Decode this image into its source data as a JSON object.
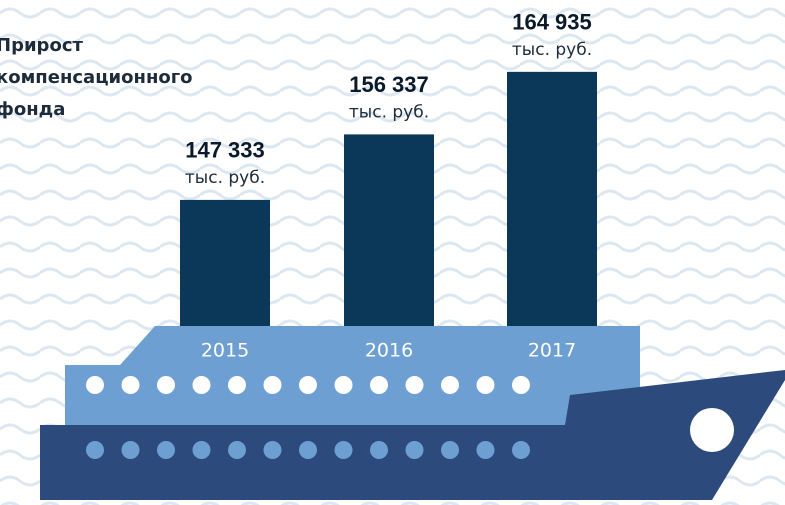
{
  "chart_data": {
    "type": "bar",
    "title": "Прирост компенсационного фонда",
    "categories": [
      "2015",
      "2016",
      "2017"
    ],
    "values": [
      147333,
      156337,
      164935
    ],
    "value_labels": [
      "147 333",
      "156 337",
      "164 935"
    ],
    "unit": "тыс. руб.",
    "color": "#0b3858",
    "ylim": [
      130000,
      170000
    ]
  }
}
